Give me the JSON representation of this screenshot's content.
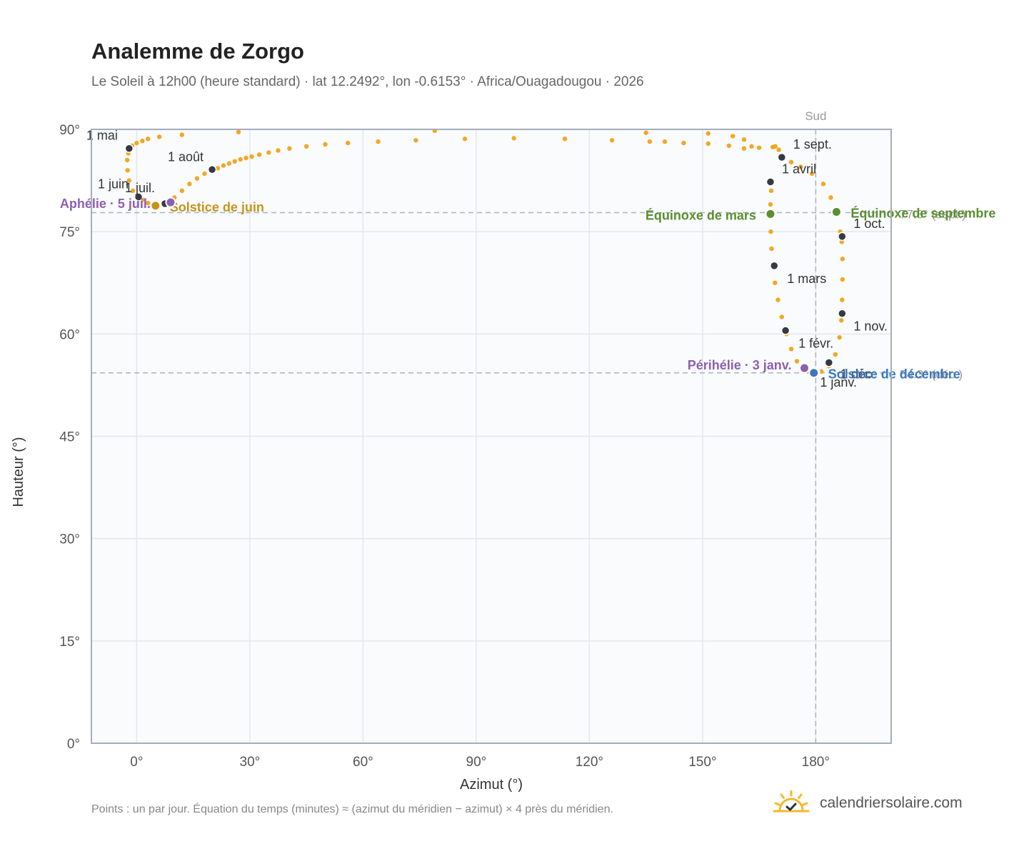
{
  "title": "Analemme de Zorgo",
  "subtitle": "Le Soleil à 12h00 (heure standard) · lat 12.2492°, lon -0.6153° · Africa/Ouagadougou · 2026",
  "footnote": "Points : un par jour. Équation du temps (minutes) ≈ (azimut du méridien − azimut) × 4 près du méridien.",
  "brand": {
    "name": "calendriersolaire.com",
    "icon": "sun-check-icon"
  },
  "colors": {
    "curve": "#f5a623",
    "month_marker": "#333a44",
    "equinox": "#5b8e2f",
    "june_solstice": "#c8921a",
    "december_solstice": "#3a78c0",
    "apsis": "#8e5fb0",
    "plot_bg": "#f9fbfd",
    "grid": "#e3e8ee",
    "frame": "#a3aebb",
    "reference_line": "#aab2bc"
  },
  "chart_data": {
    "type": "scatter",
    "title": "Analemme de Zorgo",
    "xlabel": "Azimut (°)",
    "ylabel": "Hauteur (°)",
    "xlim": [
      -12,
      200
    ],
    "ylim": [
      0,
      90
    ],
    "xticks": [
      {
        "value": 0,
        "label": "0°"
      },
      {
        "value": 30,
        "label": "30°"
      },
      {
        "value": 60,
        "label": "60°"
      },
      {
        "value": 90,
        "label": "90°"
      },
      {
        "value": 120,
        "label": "120°"
      },
      {
        "value": 150,
        "label": "150°"
      },
      {
        "value": 180,
        "label": "180°"
      }
    ],
    "yticks": [
      {
        "value": 0,
        "label": "0°"
      },
      {
        "value": 15,
        "label": "15°"
      },
      {
        "value": 30,
        "label": "30°"
      },
      {
        "value": 45,
        "label": "45°"
      },
      {
        "value": 60,
        "label": "60°"
      },
      {
        "value": 75,
        "label": "75°"
      },
      {
        "value": 90,
        "label": "90°"
      }
    ],
    "grid": true,
    "meridian": {
      "azimuth": 180,
      "label": "Sud"
    },
    "reference_lines": [
      {
        "altitude": 77.8,
        "label": "77.8° (sept.)"
      },
      {
        "altitude": 54.3,
        "label": "54.3° (déc.)"
      }
    ],
    "daily_points": [
      [
        179.5,
        54.3
      ],
      [
        181.5,
        54.5
      ],
      [
        183.5,
        55.3
      ],
      [
        185.2,
        57.0
      ],
      [
        186.3,
        59.5
      ],
      [
        186.8,
        62.0
      ],
      [
        187.0,
        65.0
      ],
      [
        187.1,
        68.0
      ],
      [
        187.1,
        71.0
      ],
      [
        186.9,
        73.5
      ],
      [
        186.5,
        75.0
      ],
      [
        185.6,
        77.8
      ],
      [
        184.0,
        80.0
      ],
      [
        182.0,
        82.0
      ],
      [
        179.0,
        83.5
      ],
      [
        176.0,
        84.5
      ],
      [
        173.5,
        85.2
      ],
      [
        171.5,
        85.8
      ],
      [
        170.2,
        87.0
      ],
      [
        169.3,
        87.5
      ],
      [
        168.6,
        87.4
      ],
      [
        158.0,
        89.0
      ],
      [
        161.0,
        88.5
      ],
      [
        163.0,
        87.5
      ],
      [
        165.0,
        87.3
      ],
      [
        161.0,
        87.2
      ],
      [
        157.0,
        87.6
      ],
      [
        151.5,
        89.4
      ],
      [
        151.5,
        87.9
      ],
      [
        145.0,
        88.0
      ],
      [
        140.0,
        88.2
      ],
      [
        136.0,
        88.2
      ],
      [
        126.0,
        88.4
      ],
      [
        135.0,
        89.5
      ],
      [
        113.5,
        88.6
      ],
      [
        100.0,
        88.7
      ],
      [
        87.0,
        88.6
      ],
      [
        79.0,
        89.8
      ],
      [
        74.0,
        88.4
      ],
      [
        64.0,
        88.2
      ],
      [
        56.0,
        88.0
      ],
      [
        50.0,
        87.8
      ],
      [
        45.0,
        87.5
      ],
      [
        40.5,
        87.2
      ],
      [
        37.5,
        86.9
      ],
      [
        35.0,
        86.6
      ],
      [
        32.5,
        86.3
      ],
      [
        30.5,
        86.0
      ],
      [
        29.0,
        85.8
      ],
      [
        27.5,
        85.6
      ],
      [
        26.0,
        85.3
      ],
      [
        24.5,
        85.0
      ],
      [
        23.0,
        84.7
      ],
      [
        21.5,
        84.3
      ],
      [
        20.0,
        84.0
      ],
      [
        18.0,
        83.5
      ],
      [
        16.0,
        82.8
      ],
      [
        14.0,
        82.0
      ],
      [
        12.0,
        81.0
      ],
      [
        10.0,
        80.0
      ],
      [
        8.5,
        79.4
      ],
      [
        7.0,
        79.0
      ],
      [
        5.0,
        78.8
      ],
      [
        3.0,
        79.2
      ],
      [
        1.5,
        79.7
      ],
      [
        0.2,
        80.1
      ],
      [
        -1.0,
        81.0
      ],
      [
        -2.0,
        82.5
      ],
      [
        -2.4,
        84.0
      ],
      [
        -2.5,
        85.5
      ],
      [
        -2.2,
        86.5
      ],
      [
        -1.8,
        87.2
      ],
      [
        -1.2,
        87.6
      ],
      [
        0.0,
        88.0
      ],
      [
        1.5,
        88.3
      ],
      [
        3.0,
        88.6
      ],
      [
        6.0,
        88.9
      ],
      [
        12.0,
        89.2
      ],
      [
        27.0,
        89.6
      ],
      [
        168.2,
        81.0
      ],
      [
        168.0,
        79.0
      ],
      [
        168.0,
        77.5
      ],
      [
        168.1,
        75.0
      ],
      [
        168.3,
        72.5
      ],
      [
        168.7,
        70.0
      ],
      [
        169.2,
        67.5
      ],
      [
        170.0,
        65.0
      ],
      [
        171.0,
        62.5
      ],
      [
        172.2,
        60.0
      ],
      [
        173.5,
        57.8
      ],
      [
        175.0,
        56.0
      ],
      [
        176.5,
        55.0
      ],
      [
        178.0,
        54.5
      ]
    ],
    "month_markers": [
      {
        "label": "1 janv.",
        "az": 180.0,
        "alt": 54.4,
        "dx": 6,
        "dy": 20,
        "anchor": "start"
      },
      {
        "label": "1 févr.",
        "az": 172.0,
        "alt": 60.5,
        "dx": 18,
        "dy": 24,
        "anchor": "start"
      },
      {
        "label": "1 mars",
        "az": 169.0,
        "alt": 70.0,
        "dx": 18,
        "dy": 24,
        "anchor": "start"
      },
      {
        "label": "1 avril",
        "az": 168.0,
        "alt": 82.3,
        "dx": 16,
        "dy": -12,
        "anchor": "start"
      },
      {
        "label": "1 mai",
        "az": -2.0,
        "alt": 87.2,
        "dx": -16,
        "dy": -12,
        "anchor": "end"
      },
      {
        "label": "1 juin",
        "az": 0.5,
        "alt": 80.1,
        "dx": -14,
        "dy": -12,
        "anchor": "end"
      },
      {
        "label": "1 juil.",
        "az": 7.5,
        "alt": 79.1,
        "dx": -14,
        "dy": -16,
        "anchor": "end"
      },
      {
        "label": "1 août",
        "az": 20.0,
        "alt": 84.1,
        "dx": -12,
        "dy": -12,
        "anchor": "end"
      },
      {
        "label": "1 sept.",
        "az": 171.0,
        "alt": 85.9,
        "dx": 16,
        "dy": -12,
        "anchor": "start"
      },
      {
        "label": "1 oct.",
        "az": 187.0,
        "alt": 74.3,
        "dx": 16,
        "dy": -12,
        "anchor": "start"
      },
      {
        "label": "1 nov.",
        "az": 187.0,
        "alt": 63.0,
        "dx": 16,
        "dy": 24,
        "anchor": "start"
      },
      {
        "label": "1 déc.",
        "az": 183.5,
        "alt": 55.8,
        "dx": 16,
        "dy": 22,
        "anchor": "start"
      }
    ],
    "events": [
      {
        "label": "Équinoxe de mars",
        "az": 168.0,
        "alt": 77.6,
        "type": "equinox",
        "dx": -20,
        "dy": 8,
        "anchor": "end"
      },
      {
        "label": "Équinoxe de septembre",
        "az": 185.5,
        "alt": 77.9,
        "type": "equinox",
        "dx": 20,
        "dy": 8,
        "anchor": "start"
      },
      {
        "label": "Solstice de juin",
        "az": 5.0,
        "alt": 78.8,
        "type": "june_solstice",
        "dx": 20,
        "dy": 8,
        "anchor": "start"
      },
      {
        "label": "Solstice de décembre",
        "az": 179.5,
        "alt": 54.3,
        "type": "december_solstice",
        "dx": 20,
        "dy": 8,
        "anchor": "start"
      },
      {
        "label": "Aphélie · 5 juil.",
        "az": 9.0,
        "alt": 79.3,
        "type": "apsis",
        "dx": -28,
        "dy": 8,
        "anchor": "end"
      },
      {
        "label": "Périhélie · 3 janv.",
        "az": 177.0,
        "alt": 55.0,
        "type": "apsis",
        "dx": -18,
        "dy": 2,
        "anchor": "end"
      }
    ]
  }
}
